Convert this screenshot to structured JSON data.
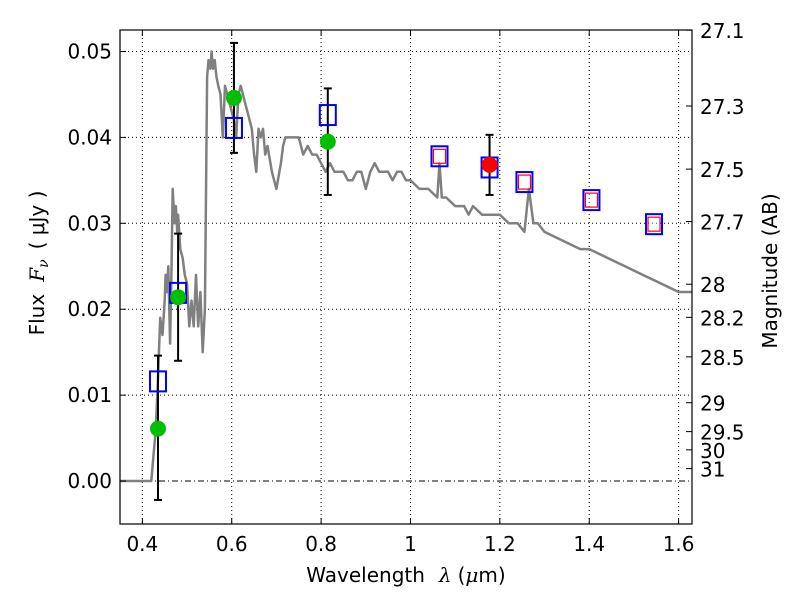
{
  "chart_data": {
    "type": "scatter",
    "title": "",
    "xlabel": "Wavelength  λ (μm)",
    "xlabel_parts": {
      "text": "Wavelength",
      "symbol": "λ",
      "unit_open": "(",
      "mu": "μ",
      "unit_rest": "m)"
    },
    "ylabel": "Flux  Fν  ( μJy )",
    "ylabel_parts": {
      "text": "Flux",
      "symbol_main": "F",
      "symbol_sub": "ν",
      "unit": "( μJy )"
    },
    "y2label": "Magnitude (AB)",
    "xlim": [
      0.35,
      1.63
    ],
    "ylim": [
      -0.005,
      0.0525
    ],
    "grid": true,
    "x_ticks": [
      {
        "value": 0.4,
        "label": "0.4"
      },
      {
        "value": 0.6,
        "label": "0.6"
      },
      {
        "value": 0.8,
        "label": "0.8"
      },
      {
        "value": 1.0,
        "label": "1"
      },
      {
        "value": 1.2,
        "label": "1.2"
      },
      {
        "value": 1.4,
        "label": "1.4"
      },
      {
        "value": 1.6,
        "label": "1.6"
      }
    ],
    "y_ticks": [
      {
        "value": 0.0,
        "label": "0.00"
      },
      {
        "value": 0.01,
        "label": "0.01"
      },
      {
        "value": 0.02,
        "label": "0.02"
      },
      {
        "value": 0.03,
        "label": "0.03"
      },
      {
        "value": 0.04,
        "label": "0.04"
      },
      {
        "value": 0.05,
        "label": "0.05"
      }
    ],
    "y2_ticks": [
      {
        "mag": 27.1,
        "label": "27.1"
      },
      {
        "mag": 27.3,
        "label": "27.3"
      },
      {
        "mag": 27.5,
        "label": "27.5"
      },
      {
        "mag": 27.7,
        "label": "27.7"
      },
      {
        "mag": 28.0,
        "label": "28"
      },
      {
        "mag": 28.2,
        "label": "28.2"
      },
      {
        "mag": 28.5,
        "label": "28.5"
      },
      {
        "mag": 29.0,
        "label": "29"
      },
      {
        "mag": 29.5,
        "label": "29.5"
      },
      {
        "mag": 30.0,
        "label": "30"
      },
      {
        "mag": 31.0,
        "label": "31"
      }
    ],
    "series": [
      {
        "name": "model spectrum",
        "kind": "line",
        "color": "#808080",
        "x": [
          0.35,
          0.42,
          0.425,
          0.43,
          0.435,
          0.44,
          0.445,
          0.45,
          0.452,
          0.455,
          0.458,
          0.462,
          0.465,
          0.468,
          0.472,
          0.475,
          0.478,
          0.48,
          0.485,
          0.49,
          0.495,
          0.5,
          0.505,
          0.51,
          0.515,
          0.52,
          0.525,
          0.53,
          0.535,
          0.54,
          0.545,
          0.548,
          0.552,
          0.555,
          0.558,
          0.562,
          0.566,
          0.57,
          0.575,
          0.58,
          0.585,
          0.59,
          0.595,
          0.6,
          0.605,
          0.61,
          0.615,
          0.62,
          0.625,
          0.63,
          0.635,
          0.64,
          0.645,
          0.65,
          0.655,
          0.66,
          0.665,
          0.67,
          0.675,
          0.68,
          0.69,
          0.7,
          0.71,
          0.715,
          0.72,
          0.73,
          0.74,
          0.75,
          0.76,
          0.77,
          0.78,
          0.79,
          0.8,
          0.81,
          0.82,
          0.83,
          0.84,
          0.85,
          0.86,
          0.87,
          0.88,
          0.89,
          0.9,
          0.91,
          0.92,
          0.93,
          0.94,
          0.95,
          0.96,
          0.97,
          0.98,
          0.99,
          1.0,
          1.02,
          1.04,
          1.06,
          1.065,
          1.07,
          1.08,
          1.1,
          1.12,
          1.13,
          1.14,
          1.16,
          1.18,
          1.2,
          1.22,
          1.24,
          1.255,
          1.265,
          1.275,
          1.285,
          1.3,
          1.34,
          1.38,
          1.4,
          1.44,
          1.48,
          1.52,
          1.56,
          1.6,
          1.63
        ],
        "y": [
          0.0,
          0.0,
          0.003,
          0.006,
          0.012,
          0.019,
          0.017,
          0.021,
          0.024,
          0.022,
          0.025,
          0.016,
          0.024,
          0.034,
          0.03,
          0.032,
          0.029,
          0.031,
          0.027,
          0.026,
          0.024,
          0.023,
          0.018,
          0.021,
          0.018,
          0.024,
          0.018,
          0.022,
          0.015,
          0.02,
          0.047,
          0.049,
          0.048,
          0.05,
          0.048,
          0.049,
          0.047,
          0.046,
          0.045,
          0.04,
          0.046,
          0.045,
          0.044,
          0.043,
          0.042,
          0.04,
          0.045,
          0.046,
          0.045,
          0.044,
          0.043,
          0.042,
          0.041,
          0.038,
          0.036,
          0.041,
          0.04,
          0.041,
          0.038,
          0.039,
          0.036,
          0.034,
          0.037,
          0.039,
          0.04,
          0.04,
          0.04,
          0.04,
          0.038,
          0.039,
          0.038,
          0.038,
          0.037,
          0.036,
          0.037,
          0.036,
          0.036,
          0.036,
          0.035,
          0.035,
          0.036,
          0.036,
          0.034,
          0.036,
          0.037,
          0.036,
          0.036,
          0.036,
          0.035,
          0.036,
          0.036,
          0.035,
          0.035,
          0.034,
          0.034,
          0.033,
          0.037,
          0.033,
          0.033,
          0.032,
          0.032,
          0.031,
          0.032,
          0.031,
          0.031,
          0.031,
          0.03,
          0.03,
          0.029,
          0.034,
          0.03,
          0.03,
          0.029,
          0.028,
          0.027,
          0.027,
          0.026,
          0.025,
          0.024,
          0.023,
          0.022,
          0.022
        ]
      },
      {
        "name": "observed photometry",
        "kind": "points",
        "marker": "circle",
        "color": "#00bf00",
        "x": [
          0.435,
          0.48,
          0.605,
          0.815
        ],
        "y": [
          0.0061,
          0.0214,
          0.0446,
          0.0395
        ],
        "yerr_low": [
          0.0083,
          0.0074,
          0.0064,
          0.0062
        ],
        "yerr_high": [
          0.0085,
          0.0074,
          0.0064,
          0.0062
        ]
      },
      {
        "name": "observed photometry (red)",
        "kind": "points",
        "marker": "circle",
        "color": "#ff0000",
        "x": [
          1.177
        ],
        "y": [
          0.0368
        ],
        "yerr_low": [
          0.0035
        ],
        "yerr_high": [
          0.0035
        ]
      },
      {
        "name": "model synthetic photometry",
        "kind": "points",
        "marker": "square-open",
        "color": "#0000ff",
        "x": [
          0.435,
          0.48,
          0.605,
          0.815,
          1.065,
          1.177,
          1.255,
          1.405,
          1.545
        ],
        "y": [
          0.0116,
          0.0219,
          0.0411,
          0.0426,
          0.0378,
          0.0365,
          0.0348,
          0.0327,
          0.0299
        ]
      },
      {
        "name": "model photometry inner",
        "kind": "points",
        "marker": "square-open-small",
        "color": "#ff0000",
        "x": [
          1.065,
          1.255,
          1.405,
          1.545
        ],
        "y": [
          0.0378,
          0.0348,
          0.0327,
          0.0299
        ]
      }
    ]
  }
}
